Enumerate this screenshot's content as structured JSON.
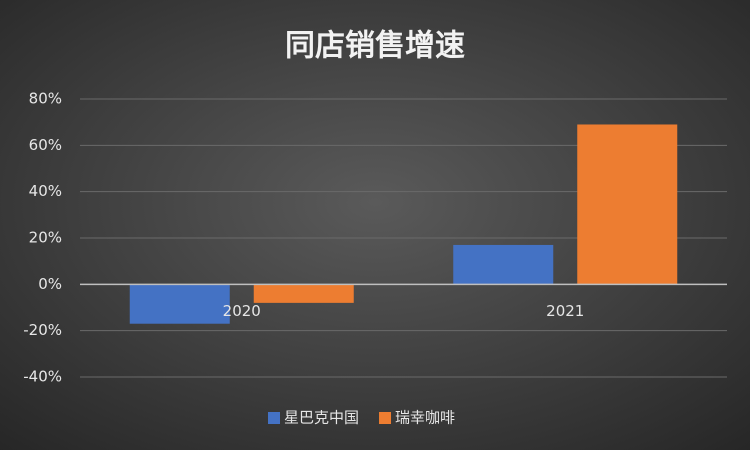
{
  "chart_data": {
    "type": "bar",
    "title": "同店销售增速",
    "categories": [
      "2020",
      "2021"
    ],
    "series": [
      {
        "name": "星巴克中国",
        "color": "#4472c4",
        "values": [
          -17,
          17
        ]
      },
      {
        "name": "瑞幸咖啡",
        "color": "#ed7d31",
        "values": [
          -8,
          69
        ]
      }
    ],
    "ylim": [
      -40,
      80
    ],
    "yticks": [
      {
        "value": -40,
        "label": "-40%"
      },
      {
        "value": -20,
        "label": "-20%"
      },
      {
        "value": 0,
        "label": "0%"
      },
      {
        "value": 20,
        "label": "20%"
      },
      {
        "value": 40,
        "label": "40%"
      },
      {
        "value": 60,
        "label": "60%"
      },
      {
        "value": 80,
        "label": "80%"
      }
    ],
    "grid": true,
    "legend": "bottom"
  }
}
